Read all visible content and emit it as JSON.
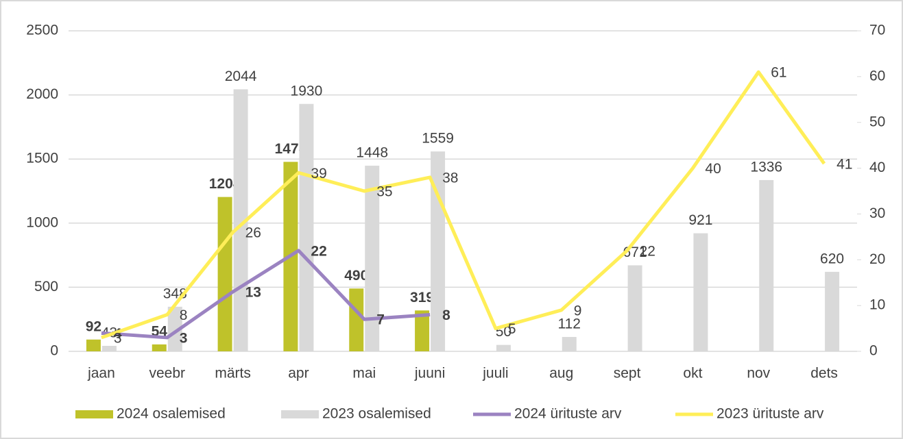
{
  "chart_data": {
    "type": "bar",
    "categories": [
      "jaan",
      "veebr",
      "märts",
      "apr",
      "mai",
      "juuni",
      "juuli",
      "aug",
      "sept",
      "okt",
      "nov",
      "dets"
    ],
    "series": [
      {
        "name": "2024 osalemised",
        "type": "bar",
        "color": "#bfc22a",
        "values": [
          92,
          54,
          1204,
          1478,
          490,
          319,
          null,
          null,
          null,
          null,
          null,
          null
        ]
      },
      {
        "name": "2023 osalemised",
        "type": "bar",
        "color": "#d9d9d9",
        "values": [
          43,
          348,
          2044,
          1930,
          1448,
          1559,
          50,
          112,
          671,
          921,
          1336,
          620
        ]
      },
      {
        "name": "2024 ürituste arv",
        "type": "line",
        "axis": "y2",
        "color": "#9b83c1",
        "values": [
          4,
          3,
          13,
          22,
          7,
          8,
          null,
          null,
          null,
          null,
          null,
          null
        ]
      },
      {
        "name": "2023 ürituste arv",
        "type": "line",
        "axis": "y2",
        "color": "#ffee58",
        "values": [
          3,
          8,
          26,
          39,
          35,
          38,
          5,
          9,
          22,
          40,
          61,
          41
        ]
      }
    ],
    "ylim": [
      0,
      2500
    ],
    "yticks": [
      0,
      500,
      1000,
      1500,
      2000,
      2500
    ],
    "y2lim": [
      0,
      70
    ],
    "y2ticks": [
      0,
      10,
      20,
      30,
      40,
      50,
      60,
      70
    ],
    "grid": true,
    "legend": "bottom"
  }
}
